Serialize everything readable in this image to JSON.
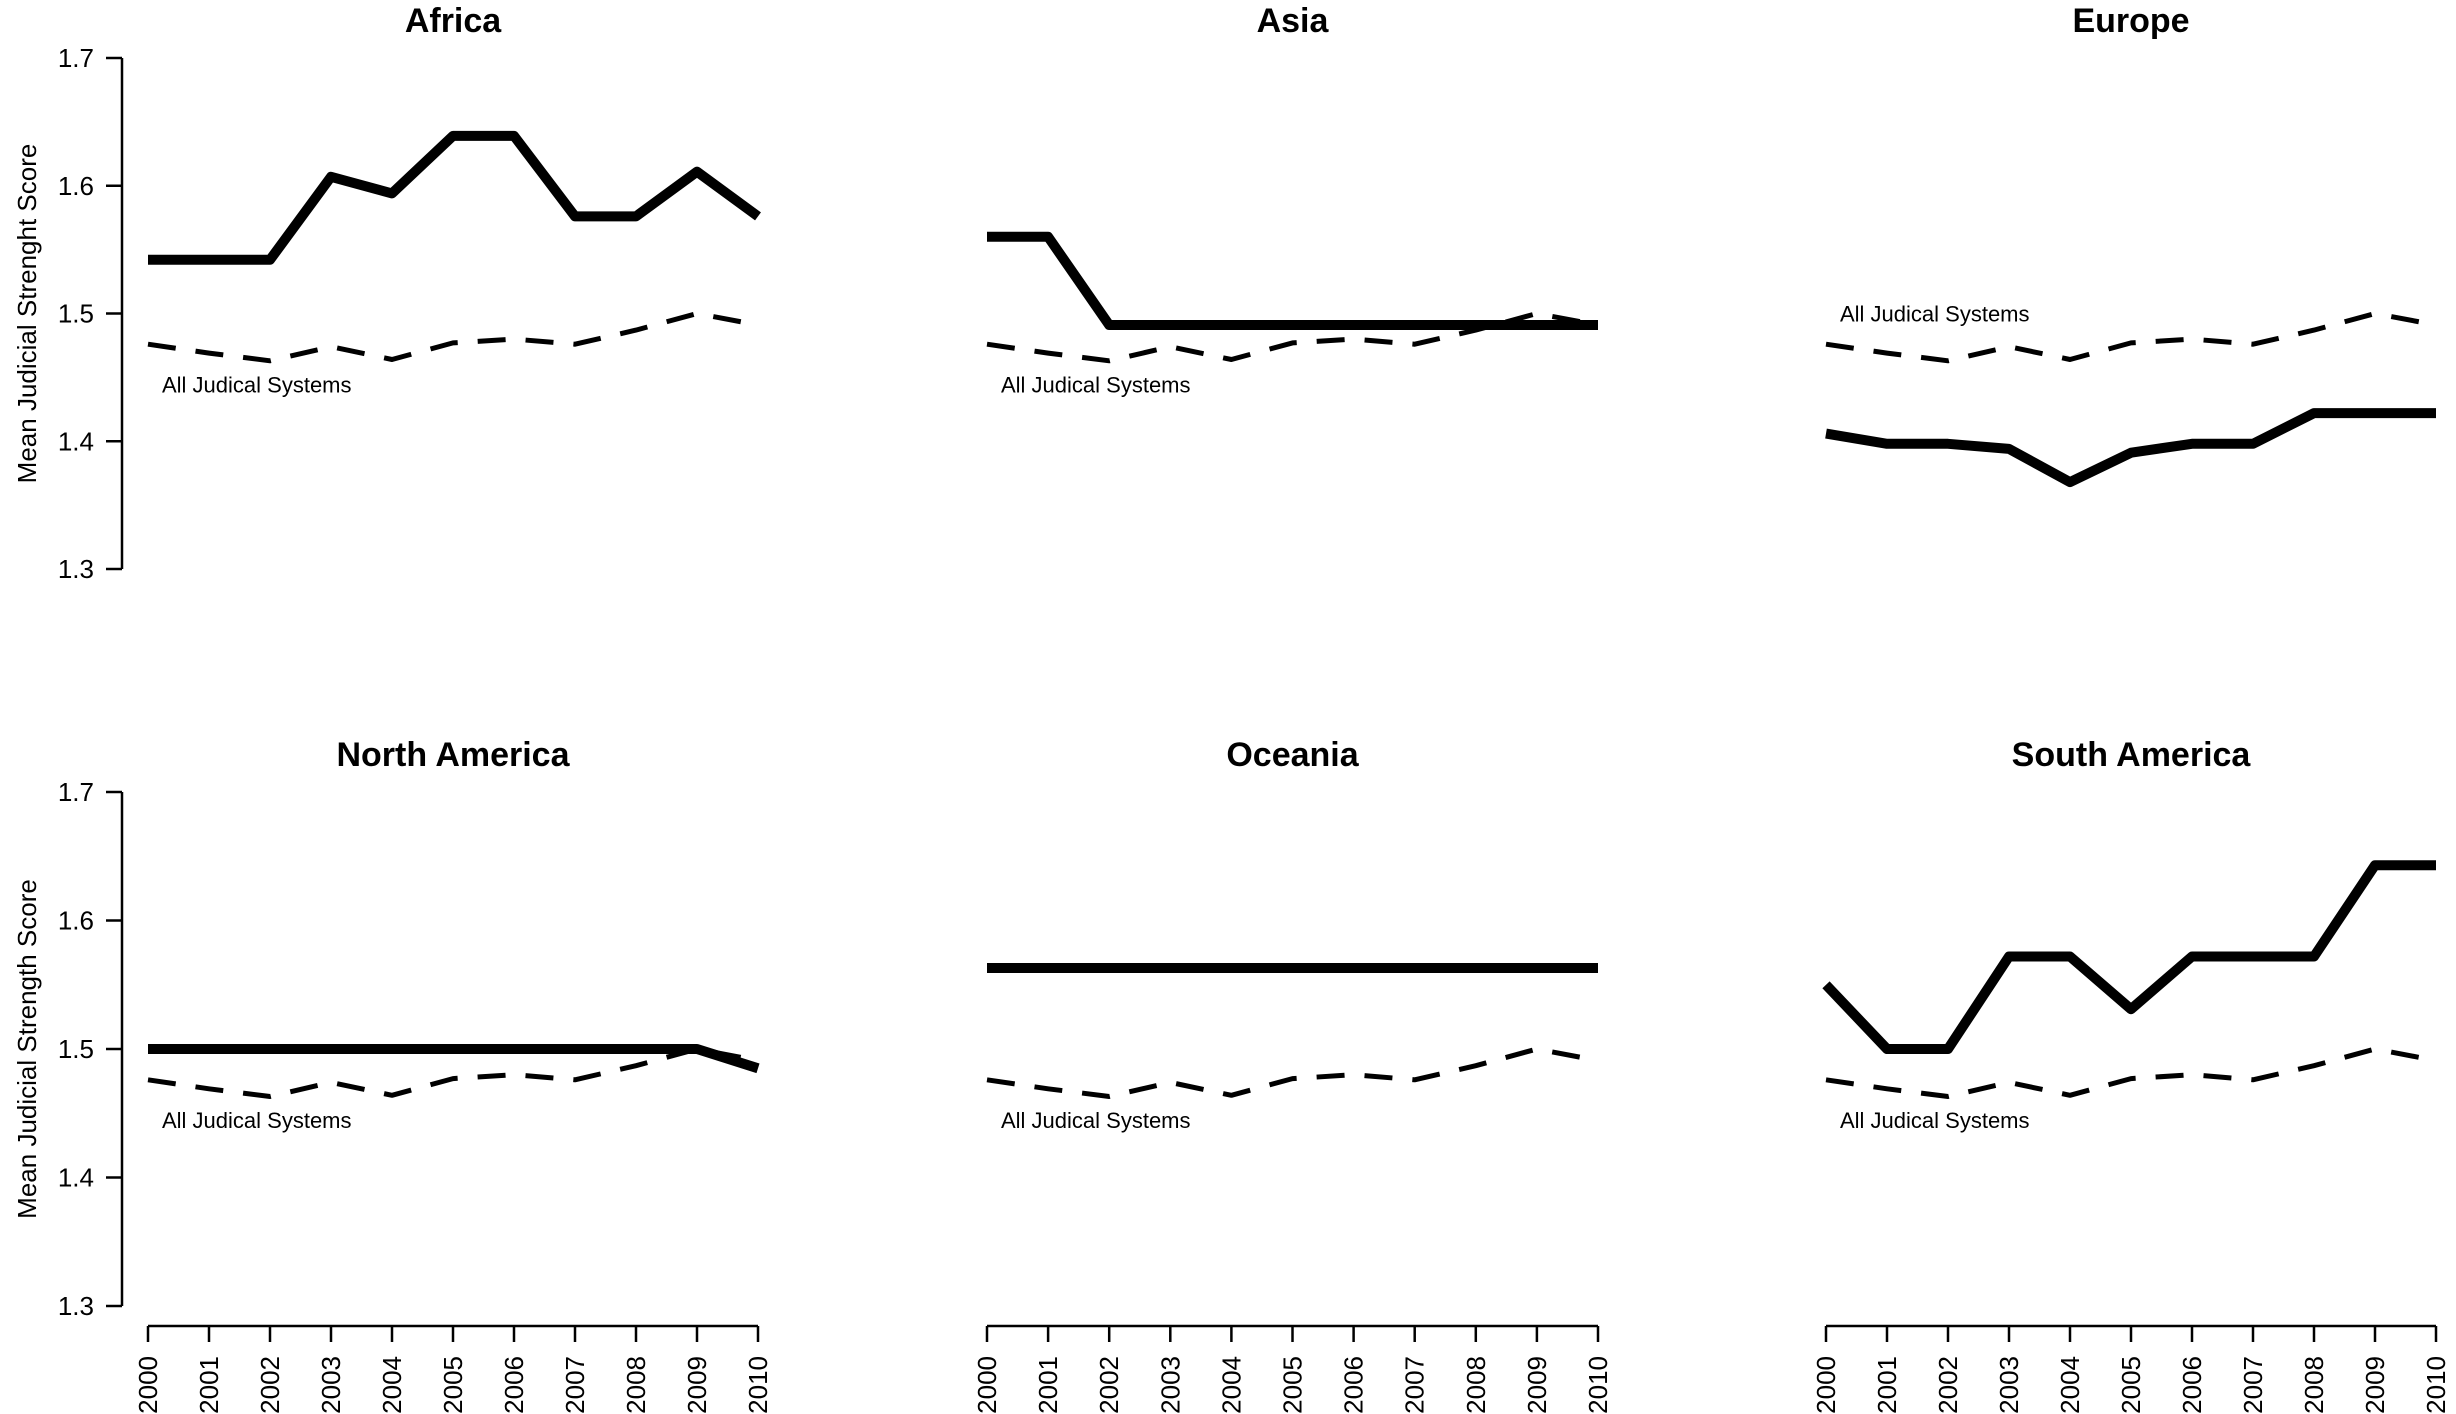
{
  "chart_data": [
    {
      "type": "line",
      "title": "Africa",
      "ylabel": "Mean Judicial Strenght Score",
      "x": [
        2000,
        2001,
        2002,
        2003,
        2004,
        2005,
        2006,
        2007,
        2008,
        2009,
        2010
      ],
      "ylim": [
        1.3,
        1.7
      ],
      "yticks": [
        "1.3",
        "1.4",
        "1.5",
        "1.6",
        "1.7"
      ],
      "series": [
        {
          "style": "solid",
          "values": [
            1.542,
            1.542,
            1.542,
            1.607,
            1.594,
            1.639,
            1.639,
            1.576,
            1.576,
            1.611,
            1.576
          ]
        },
        {
          "style": "dashed",
          "values": [
            1.476,
            1.469,
            1.463,
            1.474,
            1.464,
            1.477,
            1.48,
            1.476,
            1.487,
            1.5,
            1.491
          ]
        }
      ],
      "annotation": "All Judical Systems",
      "annotation_position": "below"
    },
    {
      "type": "line",
      "title": "Asia",
      "ylabel": "",
      "x": [
        2000,
        2001,
        2002,
        2003,
        2004,
        2005,
        2006,
        2007,
        2008,
        2009,
        2010
      ],
      "ylim": [
        1.3,
        1.7
      ],
      "yticks": [],
      "series": [
        {
          "style": "solid",
          "values": [
            1.56,
            1.56,
            1.491,
            1.491,
            1.491,
            1.491,
            1.491,
            1.491,
            1.491,
            1.491,
            1.491
          ]
        },
        {
          "style": "dashed",
          "values": [
            1.476,
            1.469,
            1.463,
            1.474,
            1.464,
            1.477,
            1.48,
            1.476,
            1.487,
            1.5,
            1.491
          ]
        }
      ],
      "annotation": "All Judical Systems",
      "annotation_position": "below"
    },
    {
      "type": "line",
      "title": "Europe",
      "ylabel": "",
      "x": [
        2000,
        2001,
        2002,
        2003,
        2004,
        2005,
        2006,
        2007,
        2008,
        2009,
        2010
      ],
      "ylim": [
        1.3,
        1.7
      ],
      "yticks": [],
      "series": [
        {
          "style": "solid",
          "values": [
            1.406,
            1.398,
            1.398,
            1.394,
            1.368,
            1.391,
            1.398,
            1.398,
            1.422,
            1.422,
            1.422
          ]
        },
        {
          "style": "dashed",
          "values": [
            1.476,
            1.469,
            1.463,
            1.474,
            1.464,
            1.477,
            1.48,
            1.476,
            1.487,
            1.5,
            1.491
          ]
        }
      ],
      "annotation": "All Judical Systems",
      "annotation_position": "above"
    },
    {
      "type": "line",
      "title": "North America",
      "ylabel": "Mean Judicial Strength Score",
      "x": [
        2000,
        2001,
        2002,
        2003,
        2004,
        2005,
        2006,
        2007,
        2008,
        2009,
        2010
      ],
      "xticks": [
        "2000",
        "2001",
        "2002",
        "2003",
        "2004",
        "2005",
        "2006",
        "2007",
        "2008",
        "2009",
        "2010"
      ],
      "ylim": [
        1.3,
        1.7
      ],
      "yticks": [
        "1.3",
        "1.4",
        "1.5",
        "1.6",
        "1.7"
      ],
      "series": [
        {
          "style": "solid",
          "values": [
            1.5,
            1.5,
            1.5,
            1.5,
            1.5,
            1.5,
            1.5,
            1.5,
            1.5,
            1.5,
            1.485
          ]
        },
        {
          "style": "dashed",
          "values": [
            1.476,
            1.469,
            1.463,
            1.474,
            1.464,
            1.477,
            1.48,
            1.476,
            1.487,
            1.5,
            1.491
          ]
        }
      ],
      "annotation": "All Judical Systems",
      "annotation_position": "below"
    },
    {
      "type": "line",
      "title": "Oceania",
      "ylabel": "",
      "x": [
        2000,
        2001,
        2002,
        2003,
        2004,
        2005,
        2006,
        2007,
        2008,
        2009,
        2010
      ],
      "xticks": [
        "2000",
        "2001",
        "2002",
        "2003",
        "2004",
        "2005",
        "2006",
        "2007",
        "2008",
        "2009",
        "2010"
      ],
      "ylim": [
        1.3,
        1.7
      ],
      "yticks": [],
      "series": [
        {
          "style": "solid",
          "values": [
            1.563,
            1.563,
            1.563,
            1.563,
            1.563,
            1.563,
            1.563,
            1.563,
            1.563,
            1.563,
            1.563
          ]
        },
        {
          "style": "dashed",
          "values": [
            1.476,
            1.469,
            1.463,
            1.474,
            1.464,
            1.477,
            1.48,
            1.476,
            1.487,
            1.5,
            1.491
          ]
        }
      ],
      "annotation": "All Judical Systems",
      "annotation_position": "below"
    },
    {
      "type": "line",
      "title": "South America",
      "ylabel": "",
      "x": [
        2000,
        2001,
        2002,
        2003,
        2004,
        2005,
        2006,
        2007,
        2008,
        2009,
        2010
      ],
      "xticks": [
        "2000",
        "2001",
        "2002",
        "2003",
        "2004",
        "2005",
        "2006",
        "2007",
        "2008",
        "2009",
        "2010"
      ],
      "ylim": [
        1.3,
        1.7
      ],
      "yticks": [],
      "series": [
        {
          "style": "solid",
          "values": [
            1.55,
            1.5,
            1.5,
            1.572,
            1.572,
            1.531,
            1.572,
            1.572,
            1.572,
            1.643,
            1.643
          ]
        },
        {
          "style": "dashed",
          "values": [
            1.476,
            1.469,
            1.463,
            1.474,
            1.464,
            1.477,
            1.48,
            1.476,
            1.487,
            1.5,
            1.491
          ]
        }
      ],
      "annotation": "All Judical Systems",
      "annotation_position": "below"
    }
  ]
}
